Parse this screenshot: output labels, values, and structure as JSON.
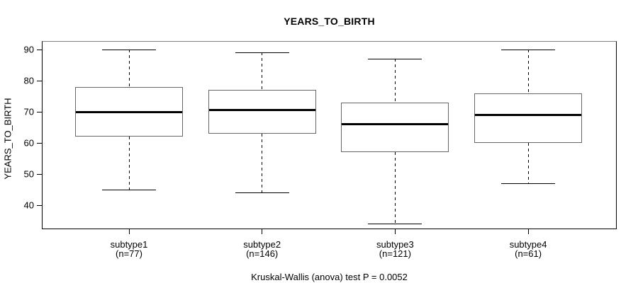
{
  "chart_data": {
    "type": "boxplot",
    "title": "YEARS_TO_BIRTH",
    "ylabel": "YEARS_TO_BIRTH",
    "xlabel": "",
    "caption": "Kruskal-Wallis (anova) test P = 0.0052",
    "yticks": [
      90,
      80,
      70,
      60,
      50,
      40
    ],
    "ylim": [
      32,
      93
    ],
    "grid": false,
    "legend": null,
    "categories": [
      "subtype1",
      "subtype2",
      "subtype3",
      "subtype4"
    ],
    "counts": [
      77,
      146,
      121,
      61
    ],
    "series": [
      {
        "name": "subtype1",
        "n": 77,
        "whisker_low": 45,
        "q1": 62,
        "median": 70,
        "q3": 78,
        "whisker_high": 90
      },
      {
        "name": "subtype2",
        "n": 146,
        "whisker_low": 44,
        "q1": 63,
        "median": 70.5,
        "q3": 77,
        "whisker_high": 89
      },
      {
        "name": "subtype3",
        "n": 121,
        "whisker_low": 34,
        "q1": 57,
        "median": 66,
        "q3": 73,
        "whisker_high": 87
      },
      {
        "name": "subtype4",
        "n": 61,
        "whisker_low": 47,
        "q1": 60,
        "median": 69,
        "q3": 76,
        "whisker_high": 90
      }
    ],
    "x_label_count_format": "(n={n})"
  },
  "colors": {
    "background": "#ffffff",
    "axis": "#000000",
    "frame_top": "#808080",
    "box_border": "#666666",
    "box_fill": "#ffffff",
    "median": "#000000",
    "text": "#000000"
  }
}
